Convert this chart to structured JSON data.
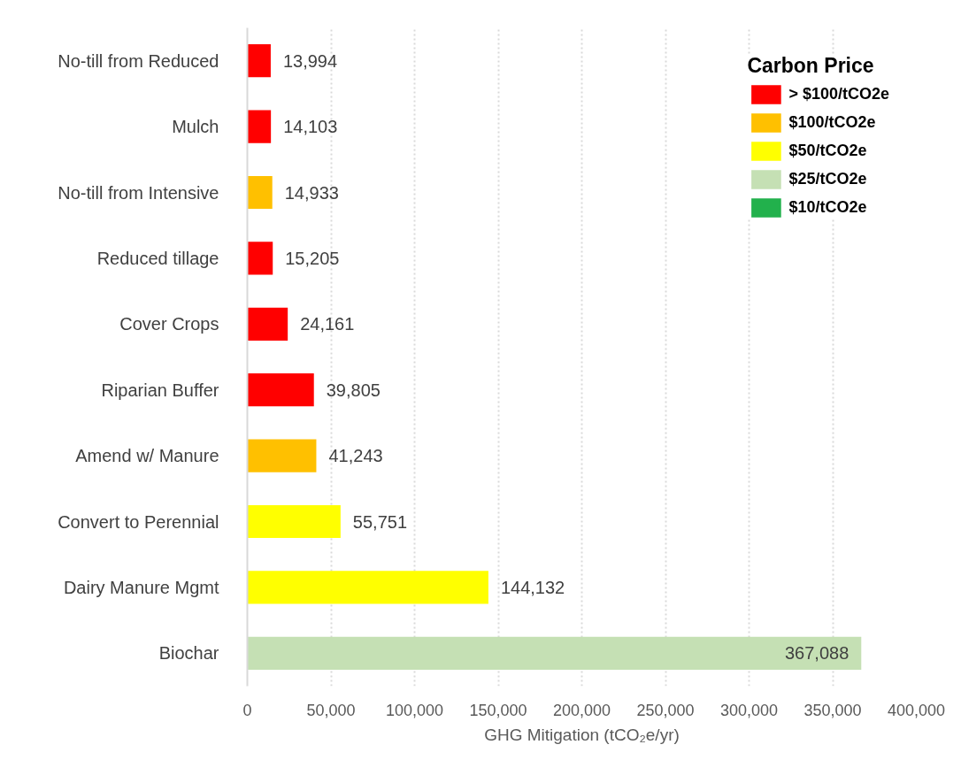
{
  "chart_data": {
    "type": "bar",
    "orientation": "horizontal",
    "stacked": true,
    "categories": [
      "No-till from Reduced",
      "Mulch",
      "No-till from Intensive",
      "Reduced tillage",
      "Cover Crops",
      "Riparian Buffer",
      "Amend w/ Manure",
      "Convert to Perennial",
      "Dairy Manure Mgmt",
      "Biochar"
    ],
    "series": [
      {
        "name": "> $100/tCO2e",
        "color": "#ff0000",
        "values": [
          13994,
          14103,
          null,
          15205,
          24161,
          39805,
          null,
          null,
          null,
          null
        ],
        "value_labels": [
          "13,994",
          "14,103",
          null,
          "15,205",
          "24,161",
          "39,805",
          null,
          null,
          null,
          null
        ]
      },
      {
        "name": "$100/tCO2e",
        "color": "#ffc000",
        "values": [
          null,
          null,
          14933,
          null,
          null,
          null,
          41243,
          null,
          null,
          null
        ],
        "value_labels": [
          null,
          null,
          "14,933",
          null,
          null,
          null,
          "41,243",
          null,
          null,
          null
        ]
      },
      {
        "name": "$50/tCO2e",
        "color": "#ffff00",
        "values": [
          null,
          null,
          null,
          null,
          null,
          null,
          null,
          55751,
          144132,
          null
        ],
        "value_labels": [
          null,
          null,
          null,
          null,
          null,
          null,
          null,
          "55,751",
          "144,132",
          null
        ]
      },
      {
        "name": "$25/tCO2e",
        "color": "#c5e0b4",
        "values": [
          null,
          null,
          null,
          null,
          null,
          null,
          null,
          null,
          null,
          367088
        ],
        "value_labels": [
          null,
          null,
          null,
          null,
          null,
          null,
          null,
          null,
          null,
          "367,088"
        ]
      },
      {
        "name": "$10/tCO2e",
        "color": "#22b14c",
        "values": [
          null,
          null,
          null,
          null,
          null,
          null,
          null,
          null,
          null,
          null
        ]
      }
    ],
    "xlabel": "GHG Mitigation (tCO₂e/yr)",
    "xlim": [
      0,
      400000
    ],
    "xticks": [
      0,
      {
        "value": 50000,
        "label": "50,000"
      },
      {
        "value": 100000,
        "label": "100,000"
      },
      {
        "value": 150000,
        "label": "150,000"
      },
      {
        "value": 200000,
        "label": "200,000"
      },
      {
        "value": 250000,
        "label": "250,000"
      },
      {
        "value": 300000,
        "label": "300,000"
      },
      {
        "value": 350000,
        "label": "350,000"
      },
      {
        "value": 400000,
        "label": "400,000"
      }
    ],
    "grid": "x",
    "legend": "top right",
    "legend_title": "Carbon Price"
  }
}
